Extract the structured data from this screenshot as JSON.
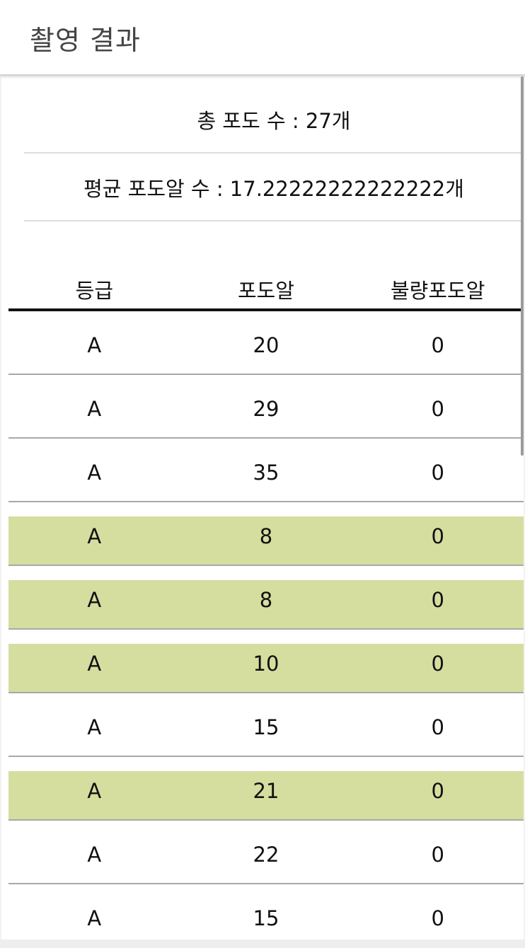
{
  "header": {
    "title": "촬영 결과"
  },
  "summary": {
    "total_label": "총 포도 수 : 27개",
    "average_label": "평균 포도알 수 : 17.22222222222222개"
  },
  "table": {
    "columns": [
      "등급",
      "포도알",
      "불량포도알"
    ],
    "highlight_color": "#d5de9f",
    "rows": [
      {
        "grade": "A",
        "grapes": "20",
        "defective": "0",
        "highlighted": false
      },
      {
        "grade": "A",
        "grapes": "29",
        "defective": "0",
        "highlighted": false
      },
      {
        "grade": "A",
        "grapes": "35",
        "defective": "0",
        "highlighted": false
      },
      {
        "grade": "A",
        "grapes": "8",
        "defective": "0",
        "highlighted": true
      },
      {
        "grade": "A",
        "grapes": "8",
        "defective": "0",
        "highlighted": true
      },
      {
        "grade": "A",
        "grapes": "10",
        "defective": "0",
        "highlighted": true
      },
      {
        "grade": "A",
        "grapes": "15",
        "defective": "0",
        "highlighted": false
      },
      {
        "grade": "A",
        "grapes": "21",
        "defective": "0",
        "highlighted": true
      },
      {
        "grade": "A",
        "grapes": "22",
        "defective": "0",
        "highlighted": false
      },
      {
        "grade": "A",
        "grapes": "15",
        "defective": "0",
        "highlighted": false
      }
    ]
  }
}
